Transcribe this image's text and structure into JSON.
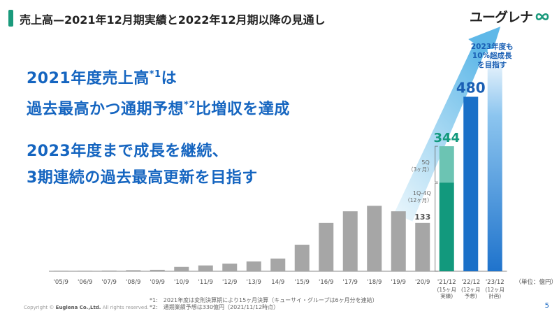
{
  "header": {
    "title": "売上高—2021年12月期実績と2022年12月期以降の見通し",
    "logo_text": "ユーグレナ"
  },
  "headlines": {
    "line1": "2021年度売上高",
    "line1_note": "*1",
    "line1_end": "は",
    "line2": "過去最高かつ通期予想",
    "line2_note": "*2",
    "line2_end": "比増収を達成",
    "line3": "2023年度まで成長を継続、",
    "line4": "3期連続の過去最高更新を目指す"
  },
  "chart_data": {
    "type": "bar",
    "unit_label": "（単位：億円）",
    "categories": [
      "'05/9",
      "'06/9",
      "'07/9",
      "'08/9",
      "'09/9",
      "'10/9",
      "'11/9",
      "'12/9",
      "'13/9",
      "14/9",
      "'15/9",
      "'16/9",
      "'17/9",
      "'18/9",
      "'19/9",
      "'20/9",
      "'21/12",
      "'22/12",
      "'23/12"
    ],
    "category_sublabels": [
      "",
      "",
      "",
      "",
      "",
      "",
      "",
      "",
      "",
      "",
      "",
      "",
      "",
      "",
      "",
      "",
      "(15ヶ月\n実績)",
      "(12ヶ月\n予想)",
      "(12ヶ月\n計画)"
    ],
    "values": [
      0.5,
      1,
      2,
      3,
      4,
      12,
      16,
      21,
      27,
      35,
      73,
      133,
      165,
      180,
      165,
      133,
      344,
      480,
      null
    ],
    "stack_2021": [
      {
        "name": "1Q-4Q",
        "sublabel": "（12ヶ月）",
        "value": 244
      },
      {
        "name": "5Q",
        "sublabel": "（3ヶ月）",
        "value": 100
      }
    ],
    "data_labels": {
      "'20/9": "133",
      "'21/12": "344",
      "'22/12": "480"
    },
    "plan_2023": {
      "label": "2023年度も\n10%超成長\nを目指す",
      "percent_growth": 10
    },
    "ylim": [
      0,
      560
    ],
    "colors": {
      "history": "#a6a6a6",
      "actual_2021_low": "#12997d",
      "actual_2021_high": "#6cc4b3",
      "forecast_2022": "#1a70c8",
      "plan_2023": "#2a85d8",
      "arrow": "#7cc8ee",
      "label_344": "#12997d",
      "label_480": "#1a5fb4"
    }
  },
  "footnotes": [
    "*1:　2021年度は変則決算期により15ヶ月決算（キューサイ・グループは6ヶ月分を連結）",
    "*2:　通期業績予想は330億円（2021/11/12時点）"
  ],
  "copyright_prefix": "Copyright © ",
  "copyright_company": "Euglena Co.,Ltd.",
  "copyright_suffix": " All rights reserved.",
  "page_number": "5"
}
